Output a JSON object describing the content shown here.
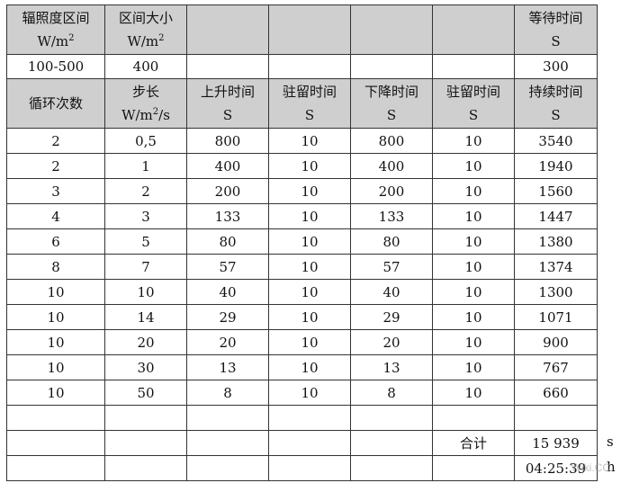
{
  "header1": {
    "range_label": "辐照度区间",
    "range_unit_base": "W/m",
    "range_unit_sup": "2",
    "size_label": "区间大小",
    "size_unit_base": "W/m",
    "size_unit_sup": "2",
    "wait_label": "等待时间",
    "wait_unit": "S"
  },
  "summary_row": {
    "range": "100-500",
    "size": "400",
    "wait": "300"
  },
  "header2": {
    "cycles": "循环次数",
    "step_label": "步长",
    "step_unit_base": "W/m",
    "step_unit_sup": "2",
    "step_unit_tail": "/s",
    "rise": "上升时间",
    "rise_unit": "S",
    "dwell1": "驻留时间",
    "dwell1_unit": "S",
    "fall": "下降时间",
    "fall_unit": "S",
    "dwell2": "驻留时间",
    "dwell2_unit": "S",
    "duration": "持续时间",
    "duration_unit": "S"
  },
  "rows": [
    [
      "2",
      "0,5",
      "800",
      "10",
      "800",
      "10",
      "3540"
    ],
    [
      "2",
      "1",
      "400",
      "10",
      "400",
      "10",
      "1940"
    ],
    [
      "3",
      "2",
      "200",
      "10",
      "200",
      "10",
      "1560"
    ],
    [
      "4",
      "3",
      "133",
      "10",
      "133",
      "10",
      "1447"
    ],
    [
      "6",
      "5",
      "80",
      "10",
      "80",
      "10",
      "1380"
    ],
    [
      "8",
      "7",
      "57",
      "10",
      "57",
      "10",
      "1374"
    ],
    [
      "10",
      "10",
      "40",
      "10",
      "40",
      "10",
      "1300"
    ],
    [
      "10",
      "14",
      "29",
      "10",
      "29",
      "10",
      "1071"
    ],
    [
      "10",
      "20",
      "20",
      "10",
      "20",
      "10",
      "900"
    ],
    [
      "10",
      "30",
      "13",
      "10",
      "13",
      "10",
      "767"
    ],
    [
      "10",
      "50",
      "8",
      "10",
      "8",
      "10",
      "660"
    ]
  ],
  "total": {
    "label": "合计",
    "seconds": "15 939",
    "seconds_unit": "s",
    "hms": "04:25:39",
    "hms_unit": "h"
  },
  "watermark": "Wiki.CC"
}
